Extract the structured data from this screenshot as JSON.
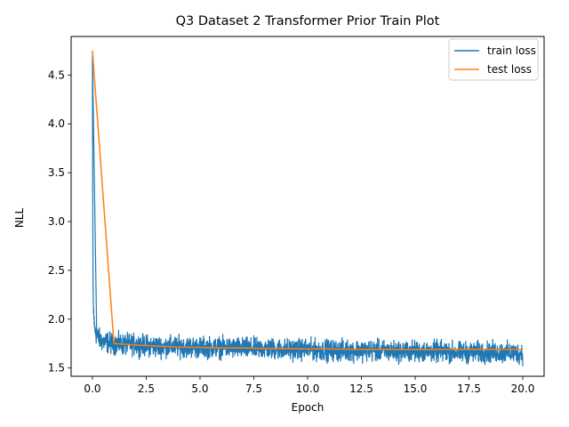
{
  "chart_data": {
    "type": "line",
    "title": "Q3 Dataset 2 Transformer Prior Train Plot",
    "xlabel": "Epoch",
    "ylabel": "NLL",
    "xlim": [
      -0.99,
      20.99
    ],
    "ylim": [
      1.415,
      4.895
    ],
    "xticks": [
      0.0,
      2.5,
      5.0,
      7.5,
      10.0,
      12.5,
      15.0,
      17.5,
      20.0
    ],
    "xtick_labels": [
      "0.0",
      "2.5",
      "5.0",
      "7.5",
      "10.0",
      "12.5",
      "15.0",
      "17.5",
      "20.0"
    ],
    "yticks": [
      1.5,
      2.0,
      2.5,
      3.0,
      3.5,
      4.0,
      4.5
    ],
    "ytick_labels": [
      "1.5",
      "2.0",
      "2.5",
      "3.0",
      "3.5",
      "4.0",
      "4.5"
    ],
    "grid": false,
    "legend_position": "top-right",
    "series": [
      {
        "name": "train loss",
        "color": "#1f77b4",
        "x": [
          0.0,
          0.01,
          0.02,
          0.03,
          0.05,
          0.08,
          0.12,
          0.2,
          0.35,
          0.5,
          0.75,
          1.0,
          1.5,
          2.0,
          2.5,
          3.0,
          4.0,
          5.0,
          6.0,
          7.0,
          8.0,
          9.0,
          10.0,
          11.0,
          12.0,
          13.0,
          14.0,
          15.0,
          16.0,
          17.0,
          18.0,
          19.0,
          20.0
        ],
        "y": [
          4.7,
          3.6,
          2.9,
          2.35,
          2.1,
          1.98,
          1.9,
          1.83,
          1.79,
          1.77,
          1.76,
          1.75,
          1.74,
          1.74,
          1.73,
          1.72,
          1.72,
          1.71,
          1.71,
          1.7,
          1.7,
          1.69,
          1.69,
          1.68,
          1.68,
          1.68,
          1.67,
          1.67,
          1.67,
          1.66,
          1.66,
          1.66,
          1.65
        ],
        "noise_band": 0.12
      },
      {
        "name": "test loss",
        "color": "#ff7f0e",
        "x": [
          0,
          1,
          2,
          3,
          4,
          5,
          6,
          7,
          8,
          9,
          10,
          11,
          12,
          13,
          14,
          15,
          16,
          17,
          18,
          19,
          20
        ],
        "y": [
          4.75,
          1.75,
          1.735,
          1.725,
          1.715,
          1.71,
          1.705,
          1.705,
          1.7,
          1.7,
          1.695,
          1.695,
          1.69,
          1.69,
          1.69,
          1.69,
          1.69,
          1.69,
          1.69,
          1.69,
          1.69
        ]
      }
    ]
  }
}
